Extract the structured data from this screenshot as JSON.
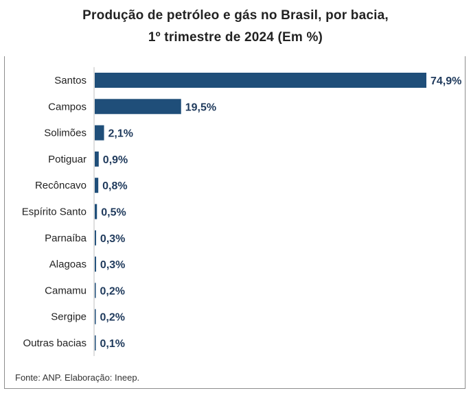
{
  "chart_data": {
    "type": "bar",
    "orientation": "horizontal",
    "title": "Produção de petróleo e gás no Brasil, por bacia,",
    "subtitle": "1º trimestre de 2024 (Em %)",
    "categories": [
      "Santos",
      "Campos",
      "Solimões",
      "Potiguar",
      "Recôncavo",
      "Espírito Santo",
      "Parnaíba",
      "Alagoas",
      "Camamu",
      "Sergipe",
      "Outras bacias"
    ],
    "values": [
      74.9,
      19.5,
      2.1,
      0.9,
      0.8,
      0.5,
      0.3,
      0.3,
      0.2,
      0.2,
      0.1
    ],
    "value_labels": [
      "74,9%",
      "19,5%",
      "2,1%",
      "0,9%",
      "0,8%",
      "0,5%",
      "0,3%",
      "0,3%",
      "0,2%",
      "0,2%",
      "0,1%"
    ],
    "xlim": [
      0,
      80
    ],
    "grid": false,
    "legend": "none",
    "bar_color": "#1f4e79",
    "label_color": "#1f3a5c"
  },
  "footer": {
    "source": "Fonte: ANP. Elaboração: Ineep."
  }
}
